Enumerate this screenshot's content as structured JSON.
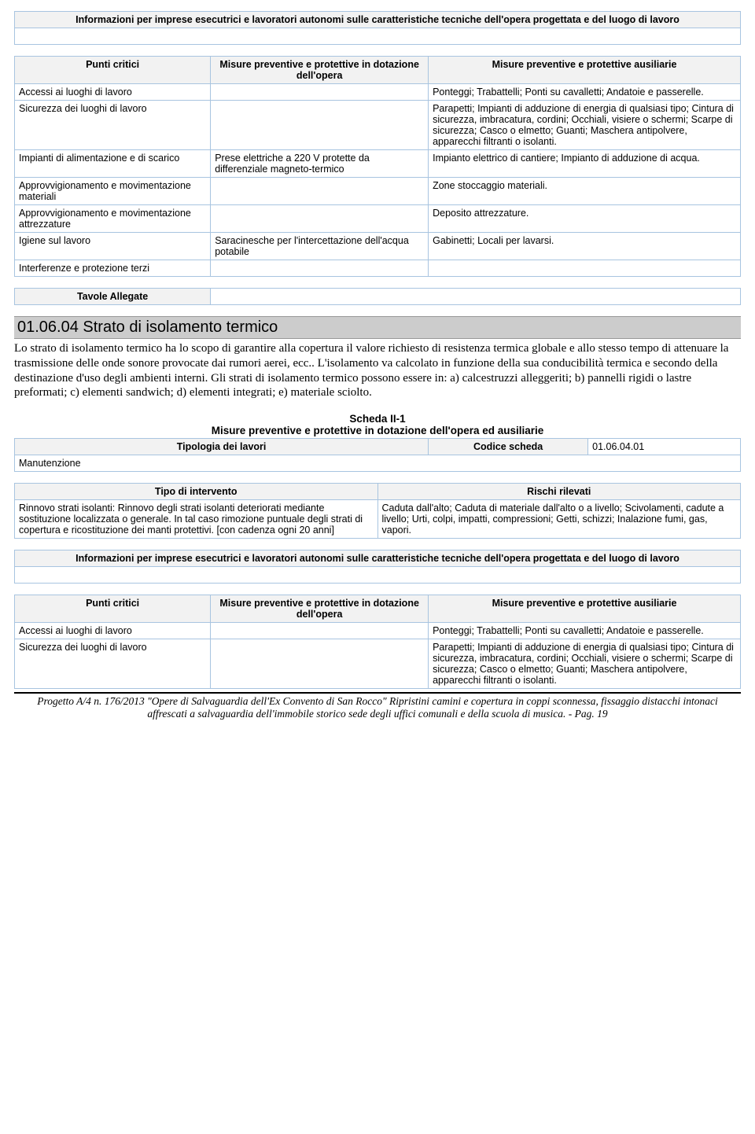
{
  "info_header": "Informazioni per imprese esecutrici e lavoratori autonomi sulle caratteristiche tecniche dell'opera progettata e del luogo di lavoro",
  "punti_headers": {
    "c1": "Punti critici",
    "c2": "Misure preventive e protettive in dotazione dell'opera",
    "c3": "Misure preventive e protettive ausiliarie"
  },
  "punti_rows_1": [
    {
      "c1": "Accessi ai luoghi di lavoro",
      "c2": "",
      "c3": "Ponteggi; Trabattelli; Ponti su cavalletti; Andatoie e passerelle."
    },
    {
      "c1": "Sicurezza dei luoghi di lavoro",
      "c2": "",
      "c3": "Parapetti; Impianti di adduzione di energia di qualsiasi tipo; Cintura di sicurezza, imbracatura, cordini; Occhiali, visiere o schermi; Scarpe di sicurezza; Casco o elmetto; Guanti; Maschera antipolvere, apparecchi filtranti o isolanti."
    },
    {
      "c1": "Impianti di alimentazione e di scarico",
      "c2": "Prese elettriche a 220 V protette da differenziale magneto-termico",
      "c3": "Impianto elettrico di cantiere; Impianto di adduzione di acqua."
    },
    {
      "c1": "Approvvigionamento e movimentazione materiali",
      "c2": "",
      "c3": "Zone stoccaggio materiali."
    },
    {
      "c1": "Approvvigionamento e movimentazione attrezzature",
      "c2": "",
      "c3": "Deposito attrezzature."
    },
    {
      "c1": "Igiene sul lavoro",
      "c2": "Saracinesche per l'intercettazione dell'acqua potabile",
      "c3": "Gabinetti; Locali per lavarsi."
    },
    {
      "c1": "Interferenze e protezione terzi",
      "c2": "",
      "c3": ""
    }
  ],
  "tavole_label": "Tavole Allegate",
  "section": {
    "code_title": "01.06.04 Strato di isolamento termico",
    "body": "Lo strato di isolamento termico ha lo scopo di garantire alla copertura il valore richiesto di resistenza termica globale e allo stesso tempo di attenuare la trasmissione delle onde sonore provocate dai rumori aerei, ecc.. L'isolamento va calcolato in funzione della sua conducibilità termica e secondo della destinazione d'uso degli ambienti interni. Gli strati di isolamento termico possono essere in:   a) calcestruzzi alleggeriti;   b) pannelli rigidi o lastre preformati;   c) elementi sandwich;   d) elementi integrati;   e) materiale sciolto."
  },
  "scheda": {
    "title": "Scheda II-1",
    "subtitle": "Misure preventive e protettive in dotazione dell'opera ed ausiliarie",
    "tipologia_header": "Tipologia dei lavori",
    "codice_header": "Codice scheda",
    "codice_value": "01.06.04.01",
    "tipologia_value": "Manutenzione"
  },
  "intervento": {
    "h1": "Tipo di intervento",
    "h2": "Rischi rilevati",
    "c1": "Rinnovo strati isolanti: Rinnovo degli strati isolanti deteriorati mediante sostituzione localizzata o generale. In tal caso rimozione puntuale degli strati di copertura e ricostituzione dei manti protettivi. [con cadenza ogni 20 anni]",
    "c2": "Caduta dall'alto; Caduta di materiale dall'alto o a livello; Scivolamenti, cadute a livello; Urti, colpi, impatti, compressioni; Getti, schizzi; Inalazione fumi, gas, vapori."
  },
  "punti_rows_2": [
    {
      "c1": "Accessi ai luoghi di lavoro",
      "c2": "",
      "c3": "Ponteggi; Trabattelli; Ponti su cavalletti; Andatoie e passerelle."
    },
    {
      "c1": "Sicurezza dei luoghi di lavoro",
      "c2": "",
      "c3": "Parapetti; Impianti di adduzione di energia di qualsiasi tipo; Cintura di sicurezza, imbracatura, cordini; Occhiali, visiere o schermi; Scarpe di sicurezza; Casco o elmetto; Guanti; Maschera antipolvere, apparecchi filtranti o isolanti."
    }
  ],
  "footer": "Progetto A/4 n. 176/2013 \"Opere di Salvaguardia dell'Ex Convento di San Rocco\" Ripristini camini e copertura in coppi sconnessa, fissaggio distacchi intonaci affrescati a salvaguardia dell'immobile storico sede degli uffici comunali e della scuola di musica. - Pag. 19"
}
